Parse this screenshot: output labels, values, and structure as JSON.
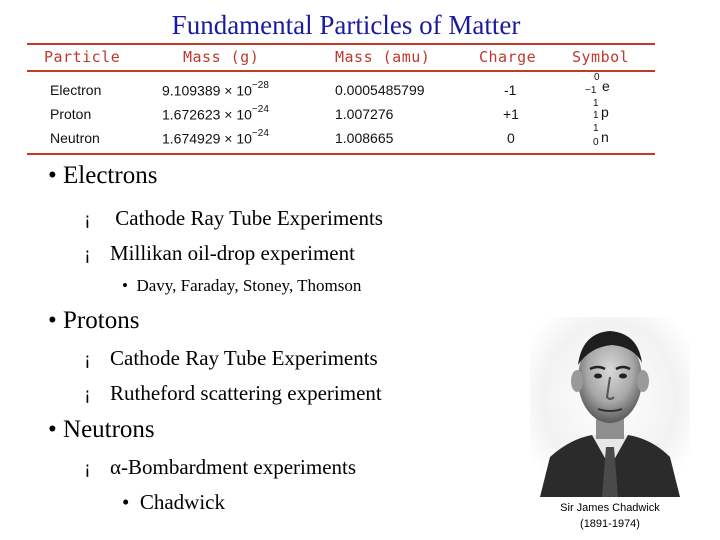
{
  "title": "Fundamental Particles of Matter",
  "table": {
    "headers": [
      "Particle",
      "Mass (g)",
      "Mass (amu)",
      "Charge",
      "Symbol"
    ],
    "rows": [
      {
        "particle": "Electron",
        "mass_g_mant": "9.109389 × 10",
        "mass_g_exp": "−28",
        "mass_amu": "0.0005485799",
        "charge": "-1",
        "sym_main": "e",
        "sym_sup": "0",
        "sym_sub": "−1"
      },
      {
        "particle": "Proton",
        "mass_g_mant": "1.672623 × 10",
        "mass_g_exp": "−24",
        "mass_amu": "1.007276",
        "charge": "+1",
        "sym_main": "p",
        "sym_sup": "1",
        "sym_sub": "1"
      },
      {
        "particle": "Neutron",
        "mass_g_mant": "1.674929 × 10",
        "mass_g_exp": "−24",
        "mass_amu": "1.008665",
        "charge": "0",
        "sym_main": "n",
        "sym_sup": "1",
        "sym_sub": "0"
      }
    ]
  },
  "bullets": {
    "marker1": "•",
    "marker2": "¡",
    "marker3": "•",
    "electrons": {
      "label": "Electrons",
      "items": [
        "Cathode Ray Tube Experiments",
        "Millikan oil-drop experiment"
      ],
      "sub": "Davy, Faraday, Stoney, Thomson"
    },
    "protons": {
      "label": "Protons",
      "items": [
        "Cathode Ray Tube Experiments",
        "Rutheford scattering experiment"
      ]
    },
    "neutrons": {
      "label": "Neutrons",
      "alpha": "α",
      "item_rest": "-Bombardment experiments",
      "sub": "Chadwick"
    }
  },
  "caption": {
    "name": "Sir James Chadwick",
    "years": "(1891-1974)"
  }
}
